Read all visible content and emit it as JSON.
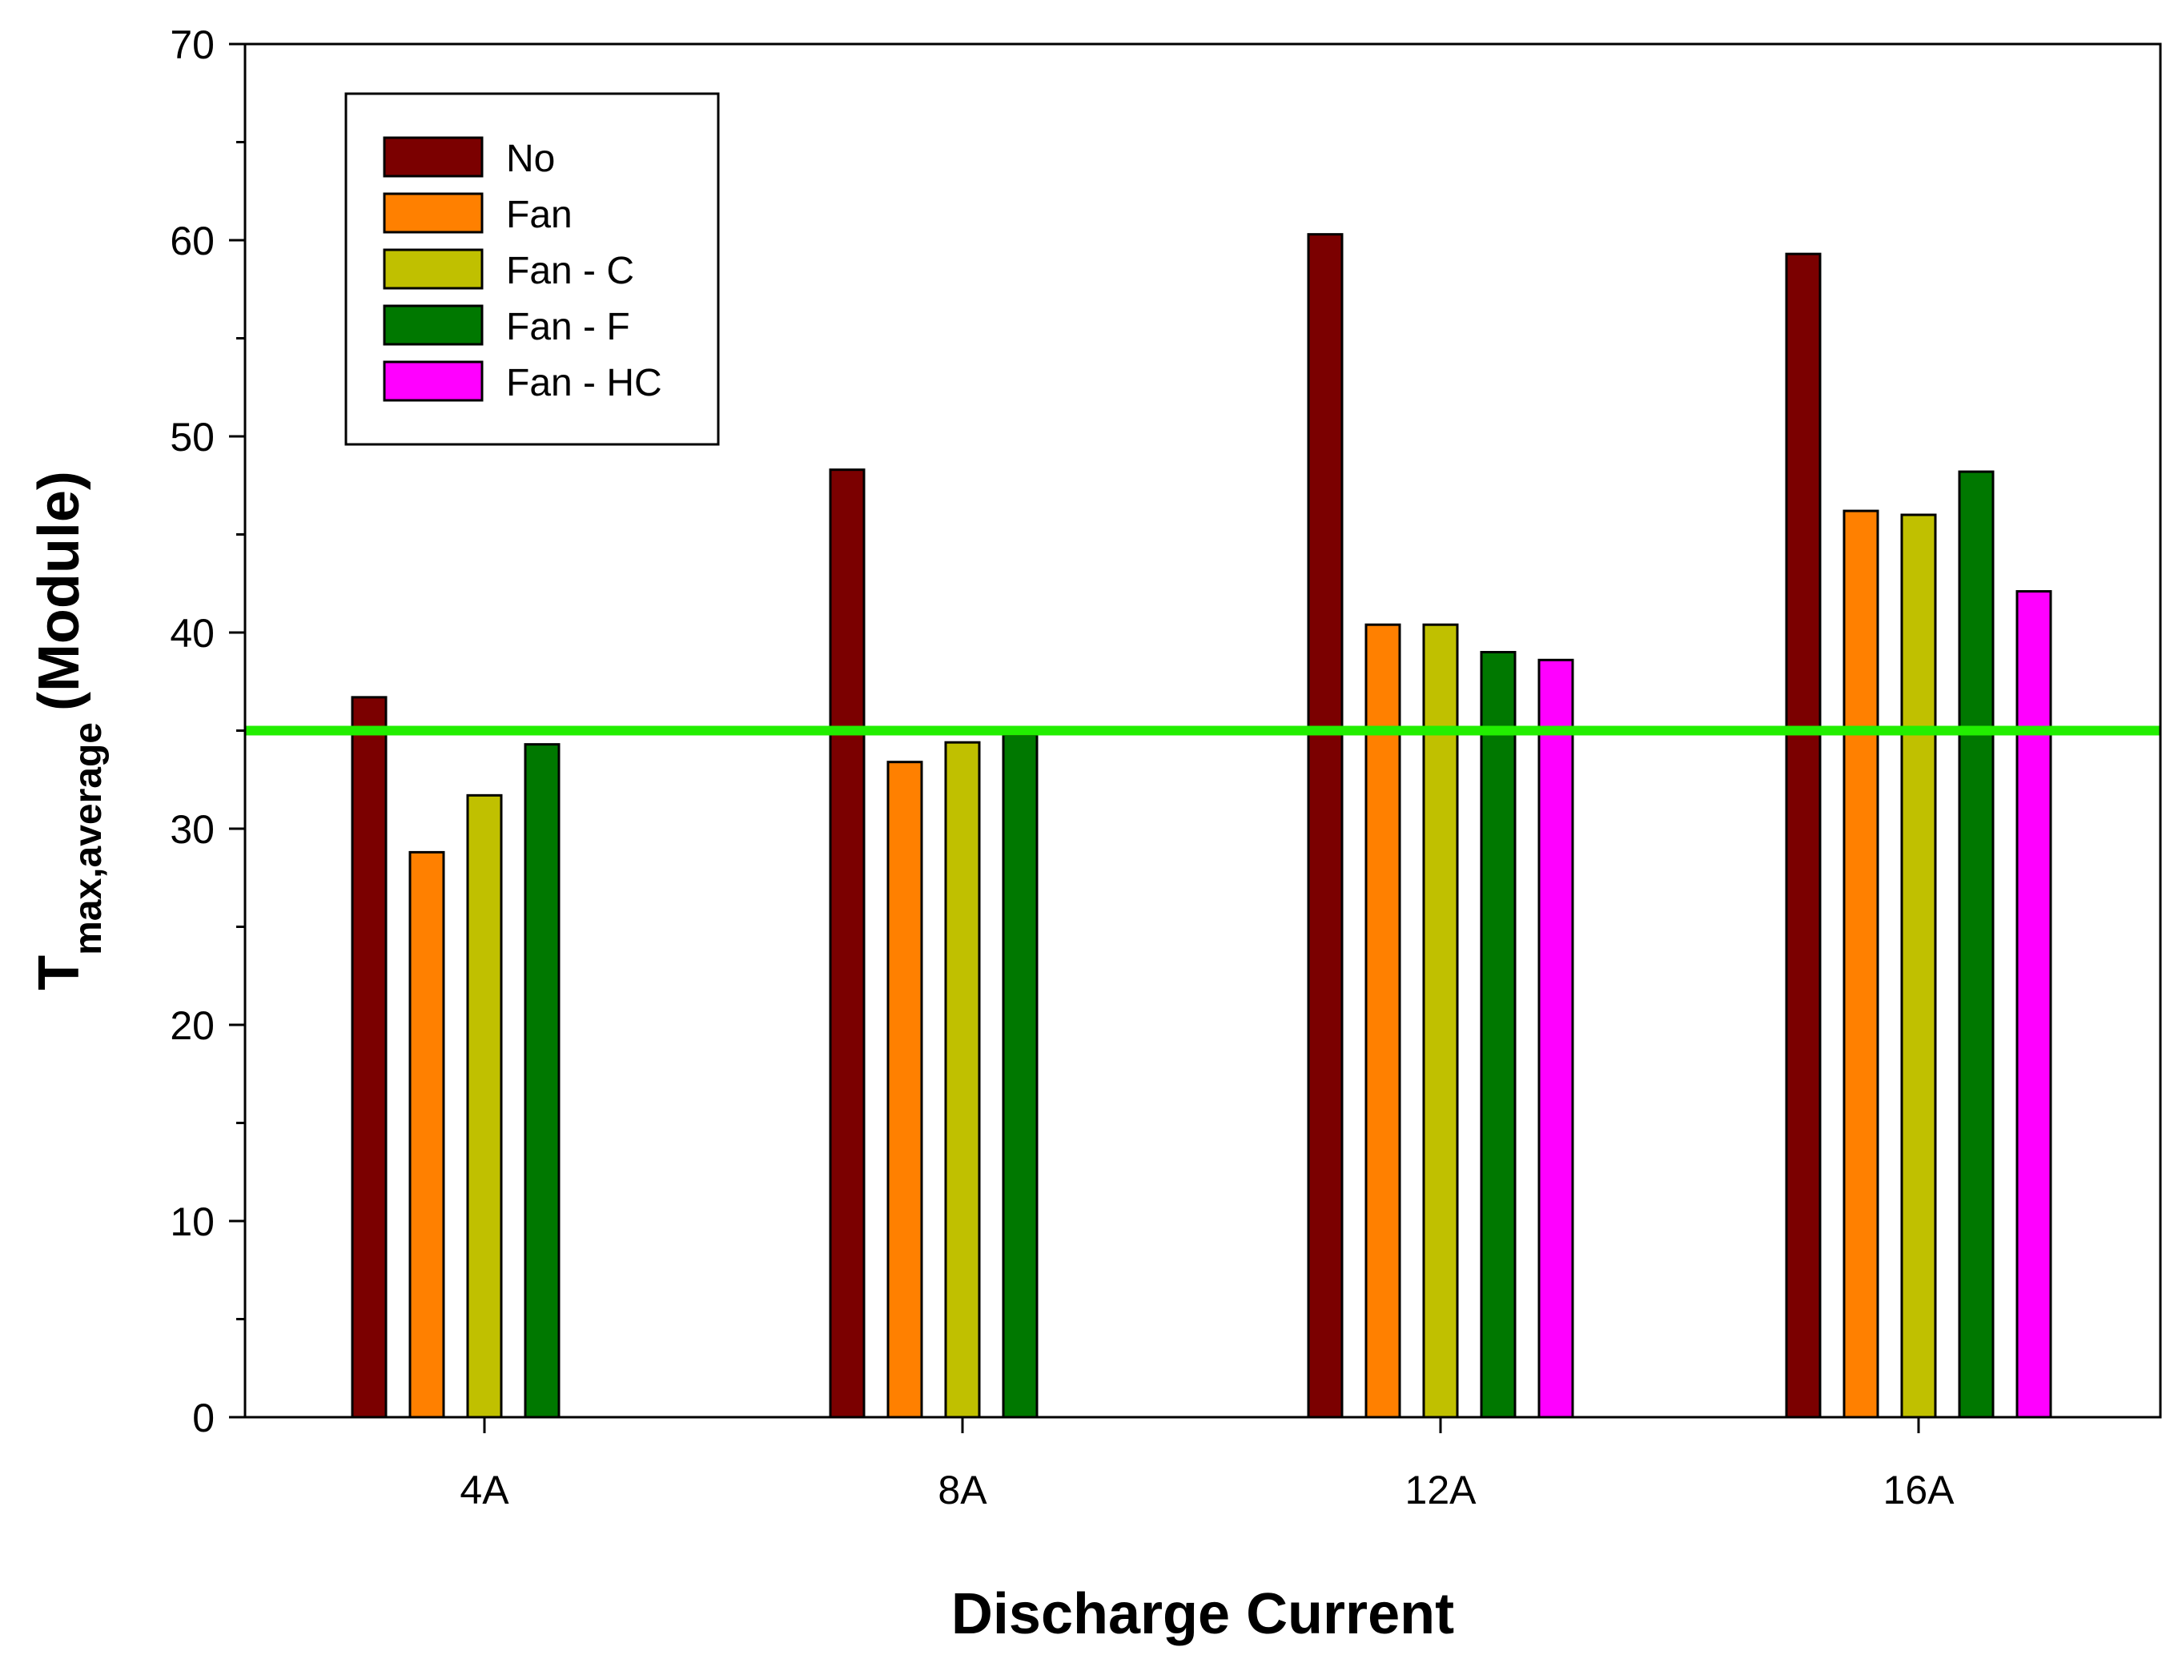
{
  "chart_data": {
    "type": "bar",
    "title": "",
    "xlabel": "Discharge Current",
    "ylabel": {
      "main": "T",
      "subscript": "max,average",
      "suffix": "(Module)"
    },
    "ylim": [
      0,
      70
    ],
    "yticks": [
      0,
      10,
      20,
      30,
      40,
      50,
      60,
      70
    ],
    "y_minor_step": 5,
    "categories": [
      "4A",
      "8A",
      "12A",
      "16A"
    ],
    "series": [
      {
        "name": "No",
        "color": "#7b0000",
        "values": [
          36.7,
          48.3,
          60.3,
          59.3
        ]
      },
      {
        "name": "Fan",
        "color": "#ff8000",
        "values": [
          28.8,
          33.4,
          40.4,
          46.2
        ]
      },
      {
        "name": "Fan - C",
        "color": "#c0c000",
        "values": [
          31.7,
          34.4,
          40.4,
          46.0
        ]
      },
      {
        "name": "Fan - F",
        "color": "#007800",
        "values": [
          34.3,
          34.8,
          39.0,
          48.2
        ]
      },
      {
        "name": "Fan - HC",
        "color": "#ff00ff",
        "values": [
          null,
          null,
          38.6,
          42.1
        ]
      }
    ],
    "reference_line": {
      "y": 35,
      "color": "#22ee00"
    },
    "legend_position": "top-left",
    "grid": false
  }
}
